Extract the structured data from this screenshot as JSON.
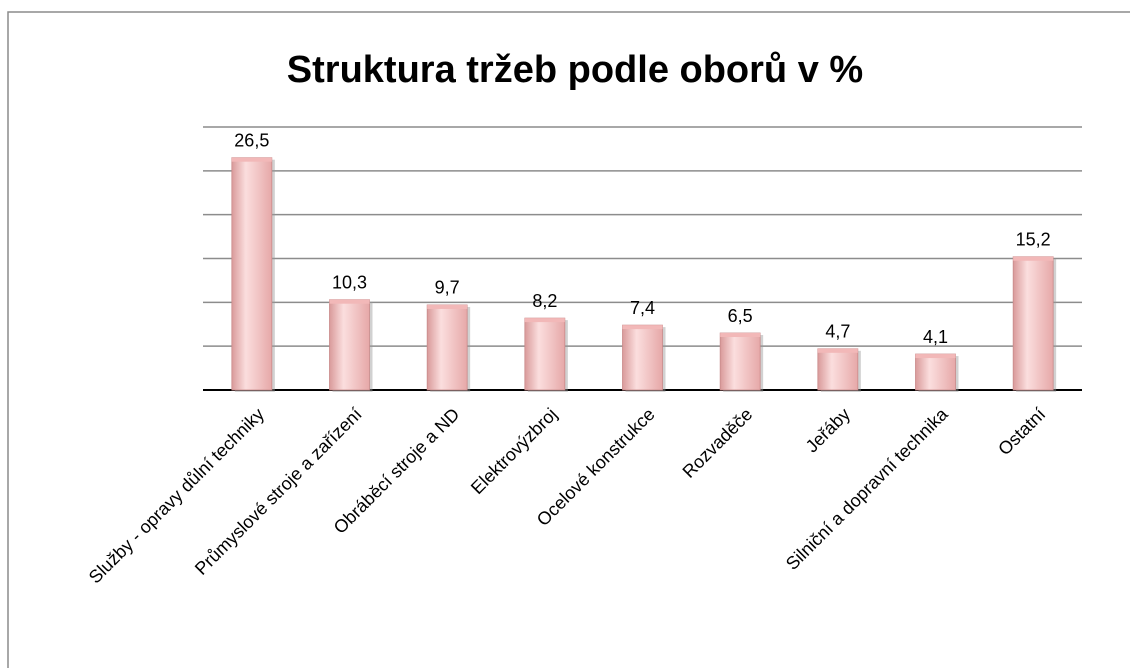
{
  "chart_data": {
    "type": "bar",
    "title": "Struktura tržeb podle oborů v %",
    "categories": [
      "Služby - opravy důlní techniky",
      "Průmyslové stroje a zařízení",
      "Obráběcí stroje a ND",
      "Elektrovýzbroj",
      "Ocelové konstrukce",
      "Rozvaděče",
      "Jeřáby",
      "Silniční a dopravní technika",
      "Ostatní"
    ],
    "values": [
      26.5,
      10.3,
      9.7,
      8.2,
      7.4,
      6.5,
      4.7,
      4.1,
      15.2
    ],
    "value_labels": [
      "26,5",
      "10,3",
      "9,7",
      "8,2",
      "7,4",
      "6,5",
      "4,7",
      "4,1",
      "15,2"
    ],
    "color": "#f2b8b8",
    "ylim": [
      0,
      30
    ],
    "yticks": [
      0,
      5,
      10,
      15,
      20,
      25,
      30
    ],
    "grid": true
  }
}
